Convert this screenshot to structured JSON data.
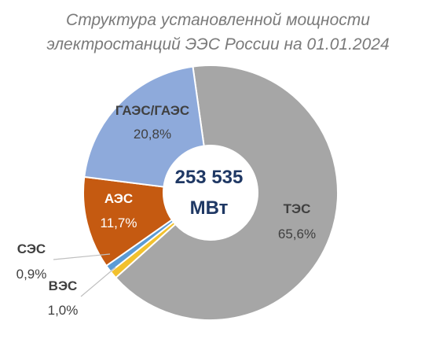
{
  "chart_data": {
    "type": "pie",
    "variant": "donut",
    "title_line1": "Структура установленной мощности",
    "title_line2": "электростанций ЭЭС России на 01.01.2024",
    "center_value": "253 535",
    "center_unit": "МВт",
    "slices": [
      {
        "name": "ТЭС",
        "label": "65,6%",
        "value": 65.6,
        "color": "#a6a6a6"
      },
      {
        "name": "ВЭС",
        "label": "1,0%",
        "value": 1.0,
        "color": "#f2c12e"
      },
      {
        "name": "СЭС",
        "label": "0,9%",
        "value": 0.9,
        "color": "#5b9bd5"
      },
      {
        "name": "АЭС",
        "label": "11,7%",
        "value": 11.7,
        "color": "#c55a11"
      },
      {
        "name": "ГАЭС/ГАЭС",
        "label": "20,8%",
        "value": 20.8,
        "color": "#8eaadb"
      }
    ]
  }
}
